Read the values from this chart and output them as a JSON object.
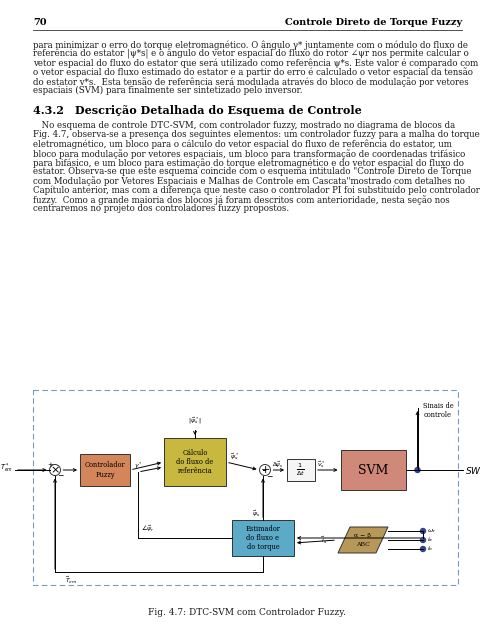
{
  "page_number": "70",
  "header_title": "Controle Direto de Torque Fuzzy",
  "body_text_1": "para minimizar o erro do torque eletromagnético. O ângulo γ* juntamente com o módulo do fluxo de\nreferência do estator |ψ*s| e o ângulo do vetor espacial do fluxo do rotor ∠ψr nos permite calcular o\nvetor espacial do fluxo do estator que será utilizado como referência ψ*s. Este valor é comparado com\no vetor espacial do fluxo estimado do estator e a partir do erro é calculado o vetor espacial da tensão\ndo estator v*s.  Esta tensão de referência será modulada através do bloco de modulação por vetores\nespaciais (SVM) para finalmente ser sintetizado pelo inversor.",
  "section_title": "4.3.2 Descrição Detalhada do Esquema de Controle",
  "body_text_2": " No esquema de controle DTC-SVM, com controlador fuzzy, mostrado no diagrama de blocos da\nFig. 4.7, observa-se a presença dos seguintes elementos: um controlador fuzzy para a malha do torque\neletromagnético, um bloco para o cálculo do vetor espacial do fluxo de referência do estator, um\nbloco para modulação por vetores espaciais, um bloco para transformação de coordenadas trifásico\npara bifásico, e um bloco para estimação do torque eletromagnético e do vetor espacial do fluxo do\nestator. Observa-se que este esquema coincide com o esquema intitulado \"Controle Direto de Torque\ncom Modulação por Vetores Espaciais e Malhas de Controle em Cascata\"mostrado com detalhes no\nCapítulo anterior, mas com a diferença que neste caso o controlador PI foi substituído pelo controlador\nfuzzy.  Como a grande maioria dos blocos já foram descritos com anterioridade, nesta seção nos\ncentraremos no projeto dos controladores fuzzy propostos.",
  "fig_caption": "Fig. 4.7: DTC-SVM com Controlador Fuzzy.",
  "bg_color": "#ffffff",
  "text_color": "#1a1a1a",
  "diagram_border_color": "#7799bb",
  "block_orange": "#d4855a",
  "block_yellow": "#c8b840",
  "block_blue": "#5aaac8",
  "block_pink": "#d08878",
  "block_tan": "#b89858"
}
